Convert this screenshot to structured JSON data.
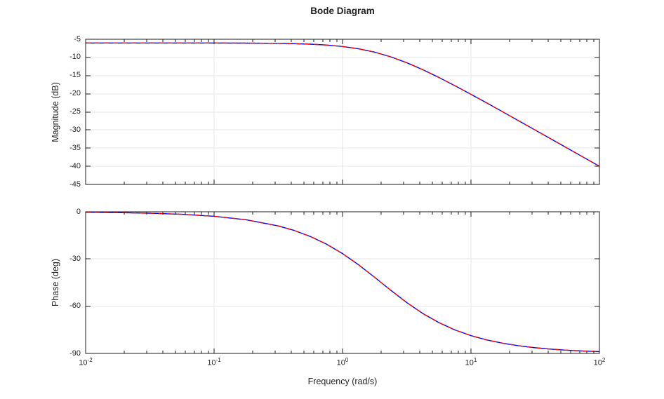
{
  "figure": {
    "title": "Bode Diagram",
    "background_color": "#ffffff",
    "axes_color": "#1a1a1a",
    "grid_color": "#e5e5e5",
    "text_color": "#262626"
  },
  "x_axis": {
    "label": "Frequency (rad/s)",
    "scale": "log",
    "tick_values": [
      0.01,
      0.1,
      1,
      10,
      100
    ],
    "tick_labels": [
      {
        "base": "10",
        "exponent": "-2"
      },
      {
        "base": "10",
        "exponent": "-1"
      },
      {
        "base": "10",
        "exponent": "0"
      },
      {
        "base": "10",
        "exponent": "1"
      },
      {
        "base": "10",
        "exponent": "2"
      }
    ]
  },
  "magnitude_axis": {
    "label": "Magnitude (dB)",
    "ylim": [
      -45,
      -5
    ],
    "tick_values": [
      -5,
      -10,
      -15,
      -20,
      -25,
      -30,
      -35,
      -40,
      -45
    ],
    "tick_labels": [
      "-5",
      "-10",
      "-15",
      "-20",
      "-25",
      "-30",
      "-35",
      "-40",
      "-45"
    ]
  },
  "phase_axis": {
    "label": "Phase (deg)",
    "ylim": [
      -90,
      0
    ],
    "tick_values": [
      0,
      -30,
      -60,
      -90
    ],
    "tick_labels": [
      "0",
      "-30",
      "-60",
      "-90"
    ]
  },
  "chart_data": {
    "type": "line",
    "title": "Bode Diagram",
    "xlabel": "Frequency (rad/s)",
    "x_scale": "log",
    "x_range": [
      0.01,
      100
    ],
    "grid": true,
    "legend": "none",
    "frequencies_rad_s": [
      0.01,
      0.0178,
      0.0316,
      0.0562,
      0.1,
      0.178,
      0.316,
      0.422,
      0.562,
      0.75,
      1,
      1.33,
      1.78,
      2.37,
      3.16,
      4.22,
      5.62,
      7.5,
      10,
      13.3,
      17.8,
      23.7,
      31.6,
      42.2,
      56.2,
      75,
      100
    ],
    "subplots": [
      {
        "name": "magnitude",
        "ylabel": "Magnitude (dB)",
        "ylim": [
          -45,
          -5
        ],
        "ytick_step": 5
      },
      {
        "name": "phase",
        "ylabel": "Phase (deg)",
        "ylim": [
          -90,
          0
        ],
        "ytick_step": 30
      }
    ],
    "series": [
      {
        "name": "system-1-blue-solid",
        "color": "#0000ff",
        "line_style": "solid",
        "magnitude_db": [
          -6.02,
          -6.02,
          -6.02,
          -6.02,
          -6.03,
          -6.06,
          -6.13,
          -6.21,
          -6.35,
          -6.59,
          -6.99,
          -7.61,
          -8.55,
          -9.83,
          -11.46,
          -13.38,
          -15.52,
          -17.8,
          -20.17,
          -22.57,
          -25.06,
          -27.53,
          -30.01,
          -32.51,
          -35.0,
          -37.5,
          -40.0
        ],
        "phase_deg": [
          -0.29,
          -0.51,
          -0.91,
          -1.61,
          -2.86,
          -5.08,
          -8.99,
          -11.91,
          -15.71,
          -20.56,
          -26.57,
          -33.63,
          -41.66,
          -49.84,
          -57.68,
          -64.64,
          -70.41,
          -75.07,
          -78.69,
          -81.44,
          -83.58,
          -85.17,
          -86.38,
          -87.29,
          -87.96,
          -88.47,
          -88.85
        ]
      },
      {
        "name": "system-2-red-dashed",
        "color": "#ff0000",
        "line_style": "dashed",
        "magnitude_db": [
          -6.02,
          -6.02,
          -6.02,
          -6.02,
          -6.03,
          -6.06,
          -6.13,
          -6.21,
          -6.35,
          -6.59,
          -6.99,
          -7.61,
          -8.55,
          -9.83,
          -11.46,
          -13.38,
          -15.52,
          -17.8,
          -20.17,
          -22.57,
          -25.06,
          -27.53,
          -30.01,
          -32.51,
          -35.0,
          -37.5,
          -40.0
        ],
        "phase_deg": [
          -0.29,
          -0.51,
          -0.91,
          -1.61,
          -2.86,
          -5.08,
          -8.99,
          -11.91,
          -15.71,
          -20.56,
          -26.57,
          -33.63,
          -41.66,
          -49.84,
          -57.68,
          -64.64,
          -70.41,
          -75.07,
          -78.69,
          -81.44,
          -83.58,
          -85.17,
          -86.38,
          -87.29,
          -87.96,
          -88.47,
          -88.85
        ]
      }
    ]
  }
}
